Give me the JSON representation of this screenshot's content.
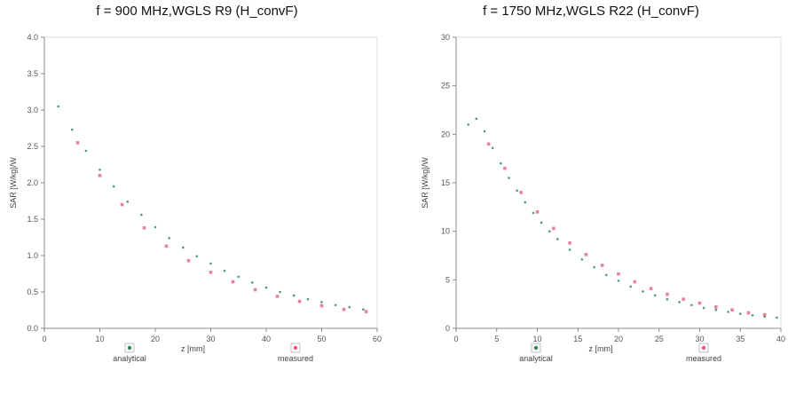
{
  "chart_data": [
    {
      "type": "scatter",
      "title": "f = 900 MHz,WGLS R9 (H_convF)",
      "xlabel": "z [mm]",
      "ylabel": "SAR [W/kg]/W",
      "xlim": [
        0,
        60
      ],
      "ylim": [
        0,
        4.0
      ],
      "xticks": [
        "0",
        "10",
        "20",
        "30",
        "40",
        "50",
        "60"
      ],
      "yticks": [
        "0.0",
        "0.5",
        "1.0",
        "1.5",
        "2.0",
        "2.5",
        "3.0",
        "3.5",
        "4.0"
      ],
      "grid": false,
      "legend_placement": "bottom",
      "series": [
        {
          "name": "analytical",
          "color": "#2e8b57",
          "x": [
            2.5,
            5,
            7.5,
            10,
            12.5,
            15,
            17.5,
            20,
            22.5,
            25,
            27.5,
            30,
            32.5,
            35,
            37.5,
            40,
            42.5,
            45,
            47.5,
            50,
            52.5,
            55,
            57.5
          ],
          "y": [
            3.05,
            2.73,
            2.44,
            2.18,
            1.95,
            1.74,
            1.56,
            1.39,
            1.24,
            1.11,
            0.99,
            0.89,
            0.79,
            0.71,
            0.63,
            0.56,
            0.5,
            0.45,
            0.4,
            0.36,
            0.32,
            0.29,
            0.26
          ]
        },
        {
          "name": "measured",
          "color": "#e05a7a",
          "x": [
            6,
            10,
            14,
            18,
            22,
            26,
            30,
            34,
            38,
            42,
            46,
            50,
            54,
            58
          ],
          "y": [
            2.55,
            2.1,
            1.7,
            1.38,
            1.13,
            0.93,
            0.77,
            0.64,
            0.53,
            0.44,
            0.37,
            0.31,
            0.26,
            0.23
          ]
        }
      ]
    },
    {
      "type": "scatter",
      "title": "f = 1750 MHz,WGLS R22 (H_convF)",
      "xlabel": "z [mm]",
      "ylabel": "SAR [W/kg]/W",
      "xlim": [
        0,
        40
      ],
      "ylim": [
        0,
        30
      ],
      "xticks": [
        "0",
        "5",
        "10",
        "15",
        "20",
        "25",
        "30",
        "35",
        "40"
      ],
      "yticks": [
        "0",
        "5",
        "10",
        "15",
        "20",
        "25",
        "30"
      ],
      "grid": false,
      "legend_placement": "bottom",
      "series": [
        {
          "name": "analytical",
          "color": "#2e8b57",
          "x": [
            1.5,
            2.5,
            3.5,
            4.5,
            5.5,
            6.5,
            7.5,
            8.5,
            9.5,
            10.5,
            11.5,
            12.5,
            14,
            15.5,
            17,
            18.5,
            20,
            21.5,
            23,
            24.5,
            26,
            27.5,
            29,
            30.5,
            32,
            33.5,
            35,
            36.5,
            38,
            39.5
          ],
          "y": [
            21.0,
            21.6,
            20.3,
            18.6,
            17.0,
            15.5,
            14.2,
            13.0,
            11.9,
            10.9,
            10.0,
            9.2,
            8.1,
            7.1,
            6.3,
            5.5,
            4.9,
            4.3,
            3.8,
            3.4,
            3.0,
            2.7,
            2.4,
            2.1,
            1.9,
            1.7,
            1.5,
            1.35,
            1.2,
            1.1
          ]
        },
        {
          "name": "measured",
          "color": "#e05a7a",
          "x": [
            4,
            6,
            8,
            10,
            12,
            14,
            16,
            18,
            20,
            22,
            24,
            26,
            28,
            30,
            32,
            34,
            36,
            38
          ],
          "y": [
            19.0,
            16.5,
            14.0,
            12.0,
            10.3,
            8.8,
            7.6,
            6.5,
            5.6,
            4.8,
            4.1,
            3.5,
            3.0,
            2.6,
            2.2,
            1.9,
            1.6,
            1.4
          ]
        }
      ]
    }
  ]
}
